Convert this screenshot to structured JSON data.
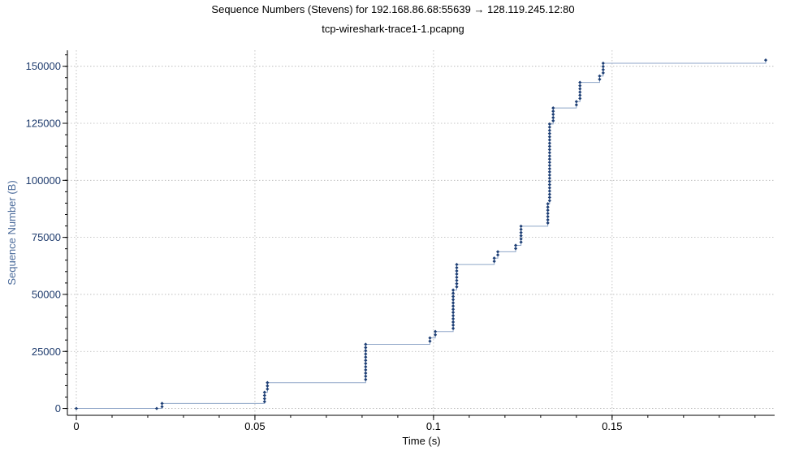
{
  "window": {
    "title": "Sequence Numbers (Stevens) for 192.168.86.68:55639 → 128.119.245.12:80",
    "subtitle": "tcp-wireshark-trace1-1.pcapng"
  },
  "colors": {
    "background": "#ffffff",
    "axis_line": "#000000",
    "tick_label": "#1f3c6e",
    "axis_title_x": "#000000",
    "axis_title_y": "#4a6a9a",
    "grid": "#b4b4b4",
    "step_line": "#8fa6c8",
    "marker": "#1e3f75"
  },
  "icons": {
    "marker_shape": "diamond-marker-icon"
  },
  "chart_data": {
    "type": "scatter",
    "title": "Sequence Numbers (Stevens) for 192.168.86.68:55639 → 128.119.245.12:80",
    "subtitle": "tcp-wireshark-trace1-1.pcapng",
    "xlabel": "Time (s)",
    "ylabel": "Sequence Number (B)",
    "xlim": [
      -0.0025,
      0.1955
    ],
    "ylim": [
      -3000,
      157000
    ],
    "x_ticks": [
      {
        "value": 0,
        "label": "0"
      },
      {
        "value": 0.05,
        "label": "0.05"
      },
      {
        "value": 0.1,
        "label": "0.1"
      },
      {
        "value": 0.15,
        "label": "0.15"
      }
    ],
    "x_minor_step": 0.01,
    "y_ticks": [
      {
        "value": 0,
        "label": "0"
      },
      {
        "value": 25000,
        "label": "25000"
      },
      {
        "value": 50000,
        "label": "50000"
      },
      {
        "value": 75000,
        "label": "75000"
      },
      {
        "value": 100000,
        "label": "100000"
      },
      {
        "value": 125000,
        "label": "125000"
      },
      {
        "value": 150000,
        "label": "150000"
      }
    ],
    "y_minor_step": 5000,
    "grid": true,
    "legend": "none",
    "series": [
      {
        "style": "step-connected-markers",
        "points": [
          [
            0.0,
            0
          ],
          [
            0.0225,
            0
          ],
          [
            0.024,
            800
          ],
          [
            0.024,
            2200
          ],
          [
            0.0527,
            3000
          ],
          [
            0.0527,
            4300
          ],
          [
            0.0527,
            5700
          ],
          [
            0.0527,
            7100
          ],
          [
            0.0535,
            8500
          ],
          [
            0.0535,
            9900
          ],
          [
            0.0535,
            11300
          ],
          [
            0.081,
            12700
          ],
          [
            0.081,
            14100
          ],
          [
            0.081,
            15500
          ],
          [
            0.081,
            16900
          ],
          [
            0.081,
            18300
          ],
          [
            0.081,
            19700
          ],
          [
            0.081,
            21100
          ],
          [
            0.081,
            22500
          ],
          [
            0.081,
            23900
          ],
          [
            0.081,
            25300
          ],
          [
            0.081,
            26700
          ],
          [
            0.081,
            28100
          ],
          [
            0.099,
            29500
          ],
          [
            0.099,
            30900
          ],
          [
            0.1005,
            32300
          ],
          [
            0.1005,
            33700
          ],
          [
            0.1055,
            35100
          ],
          [
            0.1055,
            36500
          ],
          [
            0.1055,
            37900
          ],
          [
            0.1055,
            39300
          ],
          [
            0.1055,
            40700
          ],
          [
            0.1055,
            42100
          ],
          [
            0.1055,
            43500
          ],
          [
            0.1055,
            44900
          ],
          [
            0.1055,
            46300
          ],
          [
            0.1055,
            47700
          ],
          [
            0.1055,
            49100
          ],
          [
            0.1055,
            50500
          ],
          [
            0.1055,
            51900
          ],
          [
            0.1065,
            53300
          ],
          [
            0.1065,
            54700
          ],
          [
            0.1065,
            56100
          ],
          [
            0.1065,
            57500
          ],
          [
            0.1065,
            58900
          ],
          [
            0.1065,
            60300
          ],
          [
            0.1065,
            61700
          ],
          [
            0.1065,
            63100
          ],
          [
            0.117,
            64500
          ],
          [
            0.117,
            65900
          ],
          [
            0.118,
            67300
          ],
          [
            0.118,
            68700
          ],
          [
            0.123,
            70100
          ],
          [
            0.123,
            71500
          ],
          [
            0.1245,
            72900
          ],
          [
            0.1245,
            74300
          ],
          [
            0.1245,
            75700
          ],
          [
            0.1245,
            77100
          ],
          [
            0.1245,
            78500
          ],
          [
            0.1245,
            79900
          ],
          [
            0.132,
            81300
          ],
          [
            0.132,
            82700
          ],
          [
            0.132,
            84100
          ],
          [
            0.132,
            85500
          ],
          [
            0.132,
            86900
          ],
          [
            0.132,
            88300
          ],
          [
            0.132,
            89700
          ],
          [
            0.1325,
            91100
          ],
          [
            0.1325,
            92500
          ],
          [
            0.1325,
            93900
          ],
          [
            0.1325,
            95300
          ],
          [
            0.1325,
            96700
          ],
          [
            0.1325,
            98100
          ],
          [
            0.1325,
            99500
          ],
          [
            0.1325,
            100900
          ],
          [
            0.1325,
            102300
          ],
          [
            0.1325,
            103700
          ],
          [
            0.1325,
            105100
          ],
          [
            0.1325,
            106500
          ],
          [
            0.1325,
            107900
          ],
          [
            0.1325,
            109300
          ],
          [
            0.1325,
            110700
          ],
          [
            0.1325,
            112100
          ],
          [
            0.1325,
            113500
          ],
          [
            0.1325,
            114900
          ],
          [
            0.1325,
            116300
          ],
          [
            0.1325,
            117700
          ],
          [
            0.1325,
            119100
          ],
          [
            0.1325,
            120500
          ],
          [
            0.1325,
            121900
          ],
          [
            0.1325,
            123300
          ],
          [
            0.1325,
            124700
          ],
          [
            0.1335,
            126100
          ],
          [
            0.1335,
            127500
          ],
          [
            0.1335,
            128900
          ],
          [
            0.1335,
            130300
          ],
          [
            0.1335,
            131700
          ],
          [
            0.14,
            133100
          ],
          [
            0.14,
            134500
          ],
          [
            0.141,
            135900
          ],
          [
            0.141,
            137300
          ],
          [
            0.141,
            138700
          ],
          [
            0.141,
            140100
          ],
          [
            0.141,
            141500
          ],
          [
            0.141,
            142900
          ],
          [
            0.1465,
            144300
          ],
          [
            0.1465,
            145700
          ],
          [
            0.1475,
            147100
          ],
          [
            0.1475,
            148500
          ],
          [
            0.1475,
            149900
          ],
          [
            0.1475,
            151300
          ],
          [
            0.193,
            152700
          ]
        ]
      }
    ]
  }
}
